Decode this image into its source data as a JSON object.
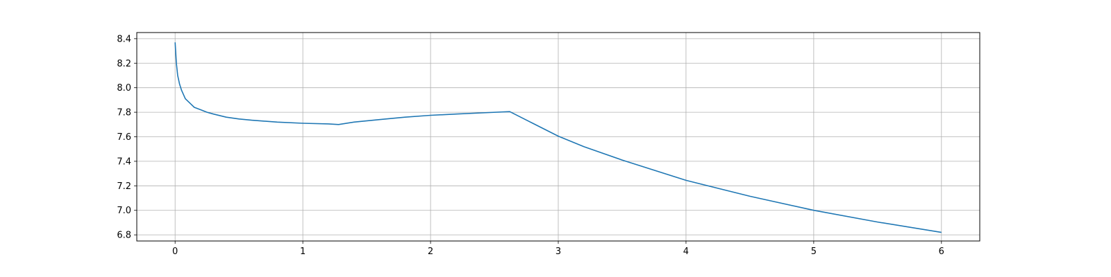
{
  "chart_data": {
    "type": "line",
    "title": "",
    "xlabel": "",
    "ylabel": "",
    "xlim": [
      -0.3,
      6.3
    ],
    "ylim": [
      6.75,
      8.45
    ],
    "xticks": [
      0,
      1,
      2,
      3,
      4,
      5,
      6
    ],
    "xtick_labels": [
      "0",
      "1",
      "2",
      "3",
      "4",
      "5",
      "6"
    ],
    "yticks": [
      6.8,
      7.0,
      7.2,
      7.4,
      7.6,
      7.8,
      8.0,
      8.2,
      8.4
    ],
    "ytick_labels": [
      "6.8",
      "7.0",
      "7.2",
      "7.4",
      "7.6",
      "7.8",
      "8.0",
      "8.2",
      "8.4"
    ],
    "grid": true,
    "line_color": "#1f77b4",
    "series": [
      {
        "x": [
          0.0,
          0.01,
          0.02,
          0.035,
          0.05,
          0.08,
          0.12,
          0.15,
          0.2,
          0.25,
          0.3,
          0.4,
          0.5,
          0.6,
          0.8,
          1.0,
          1.2,
          1.28,
          1.4,
          1.6,
          1.8,
          2.0,
          2.2,
          2.4,
          2.62,
          2.8,
          3.0,
          3.2,
          3.5,
          4.0,
          4.5,
          5.0,
          5.5,
          6.0
        ],
        "y": [
          8.37,
          8.2,
          8.1,
          8.03,
          7.98,
          7.91,
          7.87,
          7.84,
          7.82,
          7.8,
          7.785,
          7.76,
          7.745,
          7.735,
          7.72,
          7.71,
          7.705,
          7.7,
          7.72,
          7.74,
          7.76,
          7.775,
          7.785,
          7.795,
          7.805,
          7.71,
          7.605,
          7.52,
          7.41,
          7.245,
          7.115,
          7.0,
          6.905,
          6.82
        ]
      }
    ]
  }
}
